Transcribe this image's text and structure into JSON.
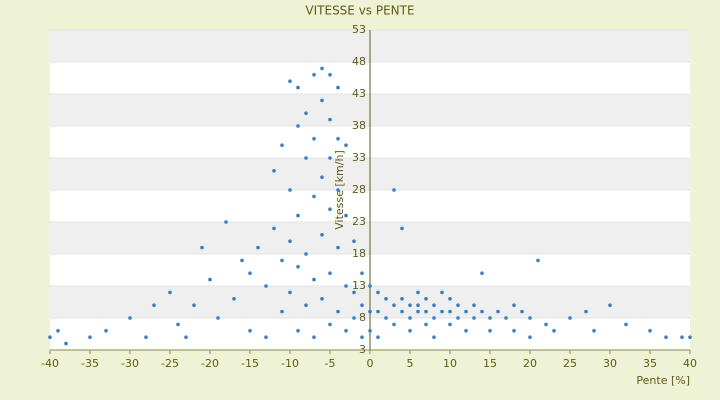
{
  "chart_data": {
    "type": "scatter",
    "title": "VITESSE vs PENTE",
    "x_label": "Pente [%]",
    "y_label": "Vitesse [km/h]",
    "color": "#2f80d0",
    "x": [
      -40,
      -39,
      -38,
      -35,
      -33,
      -30,
      -28,
      -27,
      -25,
      -24,
      -23,
      -22,
      -21,
      -20,
      -19,
      -18,
      -17,
      -16,
      -15,
      -15,
      -14,
      -13,
      -13,
      -12,
      -12,
      -11,
      -11,
      -11,
      -10,
      -10,
      -10,
      -10,
      -9,
      -9,
      -9,
      -9,
      -9,
      -8,
      -8,
      -8,
      -8,
      -7,
      -7,
      -7,
      -7,
      -7,
      -6,
      -6,
      -6,
      -6,
      -6,
      -5,
      -5,
      -5,
      -5,
      -5,
      -5,
      -4,
      -4,
      -4,
      -4,
      -4,
      -3,
      -3,
      -3,
      -3,
      -2,
      -2,
      -2,
      -1,
      -1,
      -1,
      0,
      0,
      0,
      1,
      1,
      1,
      2,
      2,
      3,
      3,
      3,
      4,
      4,
      4,
      5,
      5,
      5,
      6,
      6,
      6,
      7,
      7,
      7,
      8,
      8,
      8,
      9,
      9,
      10,
      10,
      10,
      11,
      11,
      12,
      12,
      13,
      13,
      14,
      14,
      15,
      15,
      16,
      17,
      18,
      18,
      19,
      20,
      20,
      21,
      22,
      23,
      25,
      27,
      28,
      30,
      32,
      35,
      37,
      40,
      39
    ],
    "values": [
      5,
      6,
      4,
      5,
      6,
      8,
      5,
      10,
      12,
      7,
      5,
      10,
      19,
      14,
      8,
      23,
      11,
      17,
      15,
      6,
      19,
      13,
      5,
      31,
      22,
      17,
      9,
      35,
      45,
      28,
      20,
      12,
      44,
      38,
      24,
      16,
      6,
      40,
      33,
      18,
      10,
      46,
      36,
      27,
      14,
      5,
      47,
      42,
      30,
      21,
      11,
      46,
      39,
      33,
      25,
      15,
      7,
      44,
      36,
      28,
      19,
      9,
      35,
      24,
      13,
      6,
      20,
      12,
      8,
      15,
      10,
      5,
      13,
      9,
      6,
      12,
      9,
      5,
      11,
      8,
      28,
      10,
      7,
      22,
      11,
      9,
      10,
      8,
      6,
      12,
      10,
      9,
      11,
      9,
      7,
      10,
      8,
      5,
      12,
      9,
      11,
      9,
      7,
      10,
      8,
      9,
      6,
      10,
      8,
      15,
      9,
      8,
      6,
      9,
      8,
      10,
      6,
      9,
      8,
      5,
      17,
      7,
      6,
      8,
      9,
      6,
      10,
      7,
      6,
      5,
      5,
      5
    ],
    "xlim": [
      -40,
      40
    ],
    "xticks": [
      -40,
      -35,
      -30,
      -25,
      -20,
      -15,
      -10,
      -5,
      0,
      5,
      10,
      15,
      20,
      25,
      30,
      35,
      40
    ],
    "ylim": [
      3,
      53
    ],
    "yticks": [
      3,
      8,
      13,
      18,
      23,
      28,
      33,
      38,
      43,
      48,
      53
    ],
    "grid": true
  }
}
